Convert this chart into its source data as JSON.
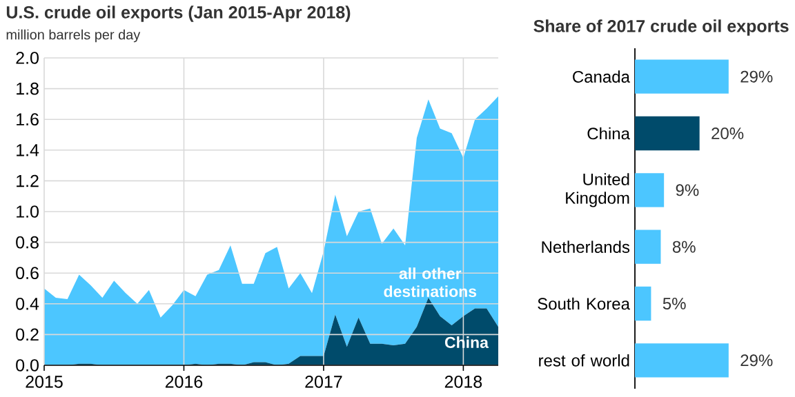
{
  "chart_data": [
    {
      "type": "area",
      "title": "U.S. crude oil exports (Jan 2015-Apr 2018)",
      "ylabel": "million barrels per day",
      "stacked": true,
      "grid": true,
      "x": [
        "2015-01",
        "2015-02",
        "2015-03",
        "2015-04",
        "2015-05",
        "2015-06",
        "2015-07",
        "2015-08",
        "2015-09",
        "2015-10",
        "2015-11",
        "2015-12",
        "2016-01",
        "2016-02",
        "2016-03",
        "2016-04",
        "2016-05",
        "2016-06",
        "2016-07",
        "2016-08",
        "2016-09",
        "2016-10",
        "2016-11",
        "2016-12",
        "2017-01",
        "2017-02",
        "2017-03",
        "2017-04",
        "2017-05",
        "2017-06",
        "2017-07",
        "2017-08",
        "2017-09",
        "2017-10",
        "2017-11",
        "2017-12",
        "2018-01",
        "2018-02",
        "2018-03",
        "2018-04"
      ],
      "series": [
        {
          "name": "China",
          "color": "#004b6b",
          "values": [
            0,
            0,
            0,
            0.01,
            0.01,
            0,
            0,
            0,
            0,
            0,
            0,
            0,
            0,
            0.01,
            0,
            0.01,
            0.01,
            0,
            0.02,
            0.02,
            0,
            0.01,
            0.06,
            0.06,
            0.06,
            0.33,
            0.12,
            0.31,
            0.14,
            0.14,
            0.13,
            0.14,
            0.25,
            0.44,
            0.32,
            0.26,
            0.32,
            0.37,
            0.37,
            0.25
          ]
        },
        {
          "name": "all other destinations",
          "color": "#4cc6ff",
          "values": [
            0.5,
            0.44,
            0.43,
            0.58,
            0.51,
            0.44,
            0.55,
            0.47,
            0.4,
            0.49,
            0.31,
            0.39,
            0.49,
            0.44,
            0.59,
            0.61,
            0.77,
            0.53,
            0.51,
            0.71,
            0.77,
            0.49,
            0.54,
            0.41,
            0.68,
            0.78,
            0.72,
            0.69,
            0.88,
            0.65,
            0.76,
            0.64,
            1.23,
            1.29,
            1.22,
            1.25,
            1.03,
            1.23,
            1.3,
            1.5
          ]
        }
      ],
      "xlim": [
        "2015-01",
        "2018-04"
      ],
      "xticks": [
        "2015",
        "2016",
        "2017",
        "2018"
      ],
      "ylim": [
        0,
        2.0
      ],
      "yticks": [
        {
          "value": 0,
          "label": "0.0"
        },
        0.2,
        0.4,
        0.6,
        0.8,
        {
          "value": 1,
          "label": "1.0"
        },
        1.2,
        1.4,
        1.6,
        1.8,
        {
          "value": 2,
          "label": "2.0"
        }
      ]
    },
    {
      "type": "bar",
      "orientation": "horizontal",
      "title": "Share of 2017 crude oil exports",
      "tick_labels": "y",
      "categories": [
        "Canada",
        "China",
        "United Kingdom",
        "Netherlands",
        "South Korea",
        "rest of world"
      ],
      "values": [
        29,
        20,
        9,
        8,
        5,
        29
      ],
      "colors": [
        "#4cc6ff",
        "#004b6b",
        "#4cc6ff",
        "#4cc6ff",
        "#4cc6ff",
        "#4cc6ff"
      ],
      "value_labels": [
        "29%",
        "20%",
        "9%",
        "8%",
        "5%",
        "29%"
      ]
    }
  ]
}
